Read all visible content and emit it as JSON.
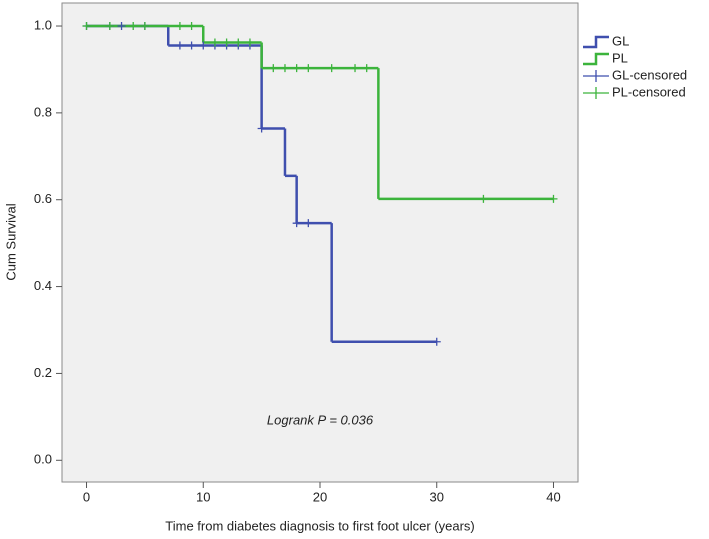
{
  "chart_data": {
    "type": "survival",
    "x_label": "Time from diabetes diagnosis to first foot ulcer (years)",
    "y_label": "Cum Survival",
    "annotation": "Logrank P = 0.036",
    "xlim": [
      -2.1,
      42.1
    ],
    "ylim": [
      -0.05,
      1.053
    ],
    "xticks": [
      0,
      10,
      20,
      30,
      40
    ],
    "yticks": [
      {
        "value": 0,
        "label": "0.0"
      },
      {
        "value": 0.2,
        "label": "0.2"
      },
      {
        "value": 0.4,
        "label": "0.4"
      },
      {
        "value": 0.6,
        "label": "0.6"
      },
      {
        "value": 0.8,
        "label": "0.8"
      },
      {
        "value": 1,
        "label": "1.0"
      }
    ],
    "legend": "outside-right",
    "series": [
      {
        "name": "GL",
        "color": "#3f4fae",
        "kind": "step",
        "x": [
          0,
          7,
          15,
          17,
          18,
          21,
          30
        ],
        "values": [
          1,
          0.955,
          0.764,
          0.655,
          0.546,
          0.273,
          0.273
        ]
      },
      {
        "name": "PL",
        "color": "#3cb43c",
        "kind": "step",
        "x": [
          0,
          10,
          15,
          25,
          40
        ],
        "values": [
          1,
          0.962,
          0.903,
          0.602,
          0.602
        ]
      },
      {
        "name": "GL-censored",
        "color": "#3f4fae",
        "kind": "censored",
        "x": [
          0,
          2,
          3,
          5,
          8,
          9,
          10,
          11,
          12,
          13,
          14,
          15,
          18,
          19,
          30
        ],
        "values": [
          1,
          1,
          1,
          1,
          0.955,
          0.955,
          0.955,
          0.955,
          0.955,
          0.955,
          0.955,
          0.764,
          0.546,
          0.546,
          0.273
        ]
      },
      {
        "name": "PL-censored",
        "color": "#3cb43c",
        "kind": "censored",
        "x": [
          0,
          2,
          4,
          5,
          8,
          9,
          11,
          12,
          13,
          14,
          16,
          17,
          18,
          19,
          21,
          23,
          24,
          34,
          40
        ],
        "values": [
          1,
          1,
          1,
          1,
          1,
          1,
          0.962,
          0.962,
          0.962,
          0.962,
          0.903,
          0.903,
          0.903,
          0.903,
          0.903,
          0.903,
          0.903,
          0.602,
          0.602
        ]
      }
    ]
  }
}
